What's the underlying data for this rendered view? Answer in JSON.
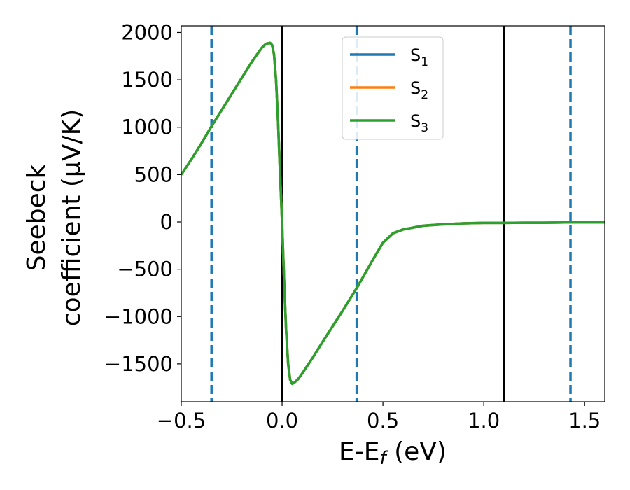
{
  "chart_data": {
    "type": "line",
    "xlabel": "E-E_f (eV)",
    "xlabel_parts": {
      "main": "E-E",
      "sub": "f",
      "rest": " (eV)"
    },
    "ylabel_line1": "Seebeck",
    "ylabel_line2": "coefficient  (μV/K)",
    "xlim": [
      -0.5,
      1.6
    ],
    "ylim": [
      -1900,
      2070
    ],
    "xticks": [
      -0.5,
      0.0,
      0.5,
      1.0,
      1.5
    ],
    "xtick_labels": [
      "−0.5",
      "0.0",
      "0.5",
      "1.0",
      "1.5"
    ],
    "yticks": [
      -1500,
      -1000,
      -500,
      0,
      500,
      1000,
      1500,
      2000
    ],
    "ytick_labels": [
      "−1500",
      "−1000",
      "−500",
      "0",
      "500",
      "1000",
      "1500",
      "2000"
    ],
    "grid": false,
    "legend_position": "top-center",
    "vertical_lines": [
      {
        "x": -0.35,
        "style": "dashed",
        "color": "#1f77b4"
      },
      {
        "x": 0.0,
        "style": "solid",
        "color": "#000000"
      },
      {
        "x": 0.37,
        "style": "dashed",
        "color": "#1f77b4"
      },
      {
        "x": 1.1,
        "style": "solid",
        "color": "#000000"
      },
      {
        "x": 1.43,
        "style": "dashed",
        "color": "#1f77b4"
      }
    ],
    "x": [
      -0.5,
      -0.45,
      -0.4,
      -0.35,
      -0.3,
      -0.25,
      -0.2,
      -0.15,
      -0.1,
      -0.08,
      -0.06,
      -0.05,
      -0.04,
      -0.03,
      -0.02,
      -0.01,
      0.0,
      0.01,
      0.02,
      0.03,
      0.04,
      0.05,
      0.06,
      0.08,
      0.1,
      0.15,
      0.2,
      0.3,
      0.37,
      0.45,
      0.5,
      0.55,
      0.6,
      0.7,
      0.8,
      0.9,
      1.0,
      1.1,
      1.2,
      1.3,
      1.4,
      1.5,
      1.6
    ],
    "series": [
      {
        "name": "S_1",
        "label_main": "S",
        "label_sub": "1",
        "color": "#1f77b4",
        "values": [
          500,
          660,
          830,
          1010,
          1180,
          1350,
          1520,
          1690,
          1840,
          1880,
          1890,
          1870,
          1770,
          1500,
          1050,
          500,
          0,
          -620,
          -1150,
          -1500,
          -1670,
          -1710,
          -1700,
          -1660,
          -1600,
          -1440,
          -1270,
          -940,
          -700,
          -400,
          -220,
          -120,
          -80,
          -40,
          -25,
          -15,
          -10,
          -10,
          -8,
          -8,
          -5,
          -5,
          -5
        ]
      },
      {
        "name": "S_2",
        "label_main": "S",
        "label_sub": "2",
        "color": "#ff7f0e",
        "values": [
          500,
          660,
          830,
          1010,
          1180,
          1350,
          1520,
          1690,
          1840,
          1880,
          1890,
          1870,
          1770,
          1500,
          1050,
          500,
          0,
          -620,
          -1150,
          -1500,
          -1670,
          -1710,
          -1700,
          -1660,
          -1600,
          -1440,
          -1270,
          -940,
          -700,
          -400,
          -220,
          -120,
          -80,
          -40,
          -25,
          -15,
          -10,
          -10,
          -8,
          -8,
          -5,
          -5,
          -5
        ]
      },
      {
        "name": "S_3",
        "label_main": "S",
        "label_sub": "3",
        "color": "#2ca02c",
        "values": [
          500,
          660,
          830,
          1010,
          1180,
          1350,
          1520,
          1690,
          1840,
          1880,
          1890,
          1870,
          1770,
          1500,
          1050,
          500,
          0,
          -620,
          -1150,
          -1500,
          -1670,
          -1710,
          -1700,
          -1660,
          -1600,
          -1440,
          -1270,
          -940,
          -700,
          -400,
          -220,
          -120,
          -80,
          -40,
          -25,
          -15,
          -10,
          -10,
          -8,
          -8,
          -5,
          -5,
          -5
        ]
      }
    ]
  }
}
